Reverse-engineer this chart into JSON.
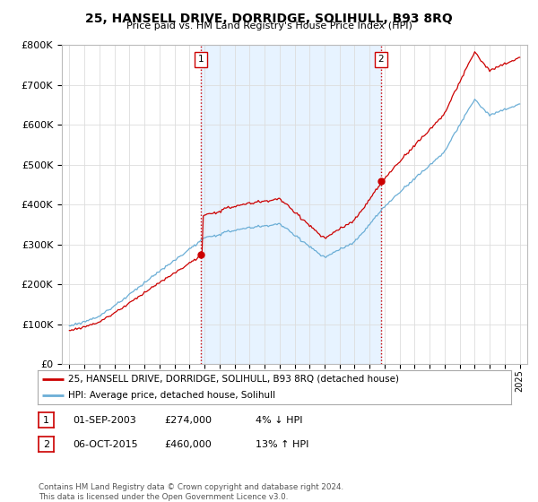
{
  "title": "25, HANSELL DRIVE, DORRIDGE, SOLIHULL, B93 8RQ",
  "subtitle": "Price paid vs. HM Land Registry's House Price Index (HPI)",
  "ylabel_ticks": [
    "£0",
    "£100K",
    "£200K",
    "£300K",
    "£400K",
    "£500K",
    "£600K",
    "£700K",
    "£800K"
  ],
  "ylim": [
    0,
    800000
  ],
  "hpi_color": "#6baed6",
  "price_color": "#cc0000",
  "vline_color": "#cc0000",
  "transaction1_year": 2003.75,
  "transaction1_price": 274000,
  "transaction2_year": 2015.75,
  "transaction2_price": 460000,
  "legend_line1": "25, HANSELL DRIVE, DORRIDGE, SOLIHULL, B93 8RQ (detached house)",
  "legend_line2": "HPI: Average price, detached house, Solihull",
  "footnote": "Contains HM Land Registry data © Crown copyright and database right 2024.\nThis data is licensed under the Open Government Licence v3.0.",
  "table_rows": [
    {
      "num": "1",
      "date": "01-SEP-2003",
      "price": "£274,000",
      "change": "4% ↓ HPI"
    },
    {
      "num": "2",
      "date": "06-OCT-2015",
      "price": "£460,000",
      "change": "13% ↑ HPI"
    }
  ],
  "background_color": "#ffffff",
  "grid_color": "#dddddd",
  "shade_color": "#ddeeff"
}
